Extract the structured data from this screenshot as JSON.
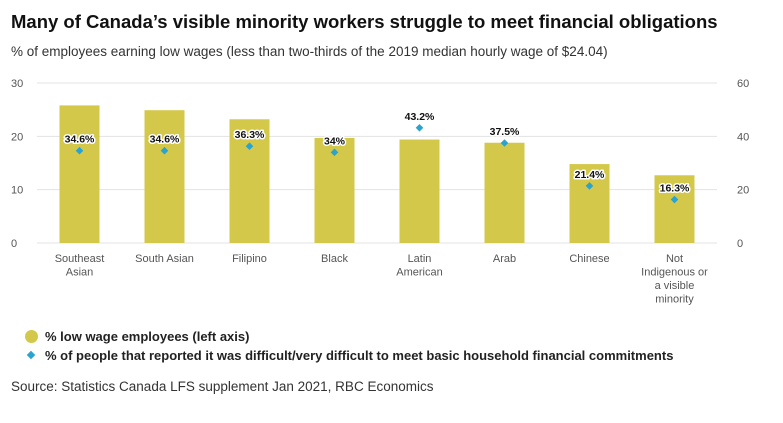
{
  "title": "Many of Canada’s visible minority workers struggle to meet financial obligations",
  "subtitle": "% of employees earning low wages (less than two-thirds of the 2019 median hourly wage of $24.04)",
  "source": "Source: Statistics Canada LFS supplement Jan 2021, RBC Economics",
  "colors": {
    "bar": "#d4c84a",
    "marker": "#2aa3cf",
    "grid": "#e3e3e3",
    "tick_text": "#555555"
  },
  "chart_data": {
    "type": "bar",
    "categories": [
      [
        "Southeast",
        "Asian"
      ],
      [
        "South Asian"
      ],
      [
        "Filipino"
      ],
      [
        "Black"
      ],
      [
        "Latin",
        "American"
      ],
      [
        "Arab"
      ],
      [
        "Chinese"
      ],
      [
        "Not",
        "Indigenous or",
        "a visible",
        "minority"
      ]
    ],
    "series": [
      {
        "name": "% low wage employees (left axis)",
        "axis": "left",
        "kind": "bar",
        "values": [
          25.8,
          24.9,
          23.2,
          19.7,
          19.4,
          18.8,
          14.8,
          12.7
        ]
      },
      {
        "name": "% of people that reported it was difficult/very difficult to meet basic household financial commitments",
        "axis": "right",
        "kind": "scatter",
        "values": [
          34.6,
          34.6,
          36.3,
          34,
          43.2,
          37.5,
          21.4,
          16.3
        ],
        "labels": [
          "34.6%",
          "34.6%",
          "36.3%",
          "34%",
          "43.2%",
          "37.5%",
          "21.4%",
          "16.3%"
        ]
      }
    ],
    "y_left": {
      "lim": [
        0,
        30
      ],
      "ticks": [
        0,
        10,
        20,
        30
      ]
    },
    "y_right": {
      "lim": [
        0,
        60
      ],
      "ticks": [
        0,
        20,
        40,
        60
      ]
    },
    "grid": true,
    "legend_position": "bottom-left"
  }
}
